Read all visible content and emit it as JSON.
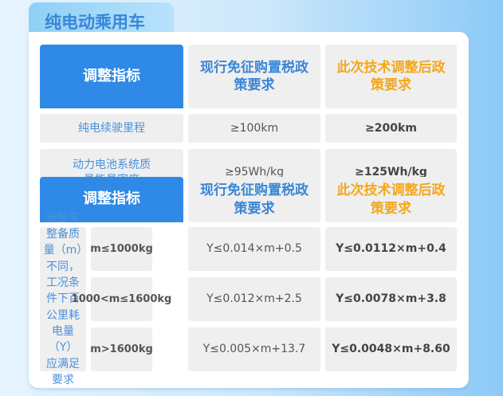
{
  "title": "纯电动乘用车",
  "table1": {
    "headers": [
      "调整指标",
      "现行免征购置税政策要求",
      "此次技术调整后政策要求"
    ],
    "rows": [
      {
        "indicator": "纯电续驶里程",
        "current": "≥100km",
        "new": "≥200km"
      },
      {
        "indicator": "动力电池系统质量能量密度",
        "current": "≥95Wh/kg",
        "new": "≥125Wh/kg"
      }
    ]
  },
  "table2": {
    "headers": [
      "调整指标",
      "现行免征购置税政策要求",
      "此次技术调整后政策要求"
    ],
    "group_label": "按整车整备质量（m）不同，工况条件下百公里耗电量（Y）应满足要求",
    "rows": [
      {
        "mass": "m≤1000kg",
        "current": "Y≤0.014×m+0.5",
        "new": "Y≤0.0112×m+0.4"
      },
      {
        "mass": "1000<m≤1600kg",
        "current": "Y≤0.012×m+2.5",
        "new": "Y≤0.0078×m+3.8"
      },
      {
        "mass": "m>1600kg",
        "current": "Y≤0.005×m+13.7",
        "new": "Y≤0.0048×m+8.60"
      }
    ]
  },
  "colors": {
    "header_blue": "#2e8ae6",
    "text_blue": "#3a86d6",
    "accent_orange": "#f3a71c"
  }
}
